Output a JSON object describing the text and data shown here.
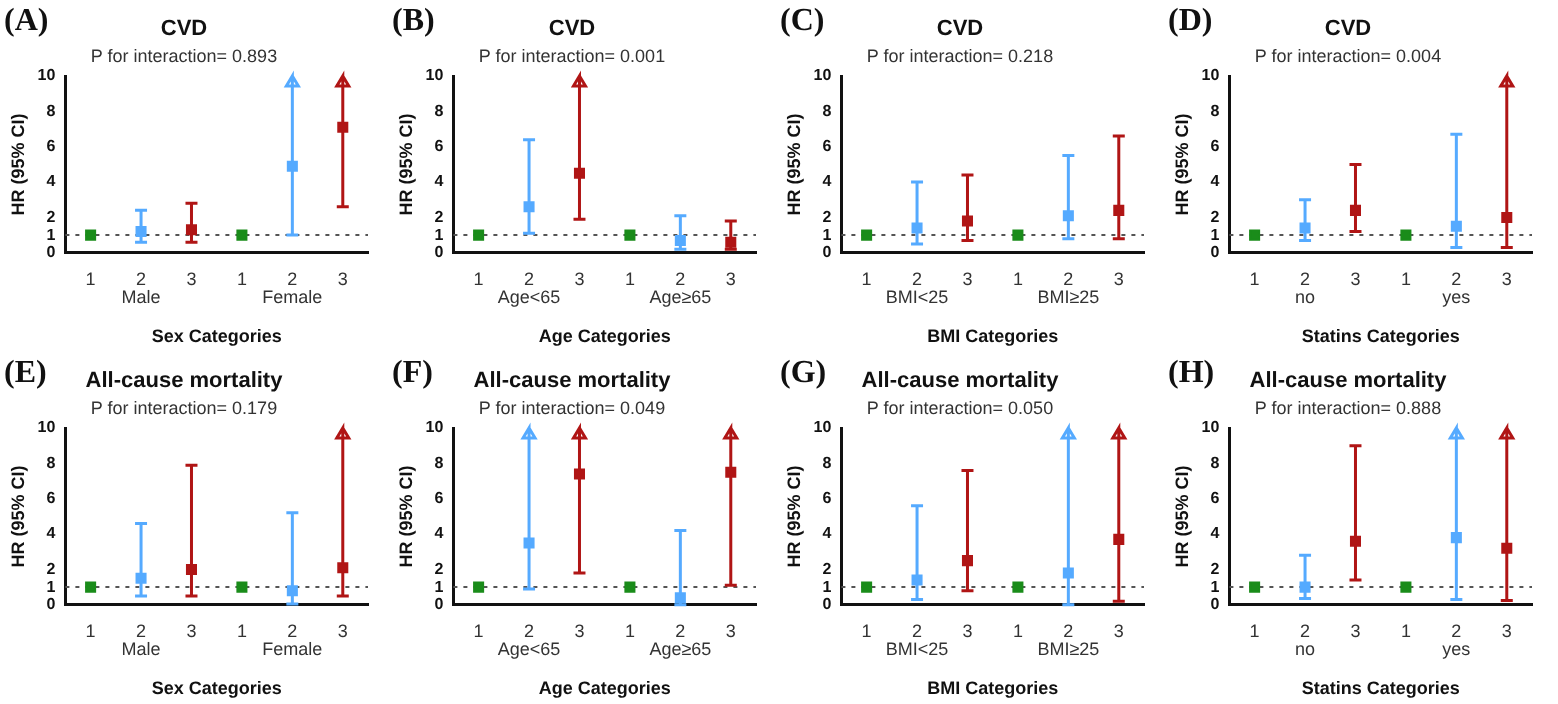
{
  "chart_data": [
    {
      "type": "scatter",
      "title": "CVD",
      "subtitle": "P for interaction= 0.893",
      "xlabel": "Sex Categories",
      "ylabel": "HR (95% CI)",
      "annotations": [
        "(A)",
        "Male",
        "Female"
      ],
      "categories": [
        "1",
        "2",
        "3",
        "1",
        "2",
        "3"
      ],
      "ylim": [
        0,
        10
      ],
      "yticks": [
        0,
        1,
        2,
        4,
        6,
        8,
        10
      ],
      "marker": "square",
      "legend": false,
      "grid": false,
      "ref_lines": [
        {
          "axis": "y",
          "value": 1,
          "color": "#555555",
          "line_style": "dotted"
        }
      ],
      "series": [
        {
          "color": "#1a8c1a",
          "values": [
            1,
            null,
            null,
            1,
            null,
            null
          ]
        },
        {
          "color": "#55aaff",
          "values": [
            null,
            1.2,
            null,
            null,
            4.9,
            null
          ],
          "errors": [
            null,
            [
              0.6,
              2.4
            ],
            null,
            null,
            [
              1.0,
              10
            ],
            null
          ]
        },
        {
          "color": "#b01515",
          "values": [
            null,
            null,
            1.3,
            null,
            null,
            7.1
          ],
          "errors": [
            null,
            null,
            [
              0.6,
              2.8
            ],
            null,
            null,
            [
              2.6,
              10
            ]
          ]
        }
      ]
    },
    {
      "type": "scatter",
      "title": "CVD",
      "subtitle": "P for interaction= 0.001",
      "xlabel": "Age Categories",
      "ylabel": "HR (95% CI)",
      "annotations": [
        "(B)",
        "Age<65",
        "Age≥65"
      ],
      "categories": [
        "1",
        "2",
        "3",
        "1",
        "2",
        "3"
      ],
      "ylim": [
        0,
        10
      ],
      "yticks": [
        0,
        1,
        2,
        4,
        6,
        8,
        10
      ],
      "marker": "square",
      "legend": false,
      "grid": false,
      "ref_lines": [
        {
          "axis": "y",
          "value": 1,
          "color": "#555555",
          "line_style": "dotted"
        }
      ],
      "series": [
        {
          "color": "#1a8c1a",
          "values": [
            1,
            null,
            null,
            1,
            null,
            null
          ]
        },
        {
          "color": "#55aaff",
          "values": [
            null,
            2.6,
            null,
            null,
            0.7,
            null
          ],
          "errors": [
            null,
            [
              1.1,
              6.4
            ],
            null,
            null,
            [
              0.2,
              2.1
            ],
            null
          ]
        },
        {
          "color": "#b01515",
          "values": [
            null,
            null,
            4.5,
            null,
            null,
            0.6
          ],
          "errors": [
            null,
            null,
            [
              1.9,
              10
            ],
            null,
            null,
            [
              0.2,
              1.8
            ]
          ]
        }
      ]
    },
    {
      "type": "scatter",
      "title": "CVD",
      "subtitle": "P for interaction= 0.218",
      "xlabel": "BMI Categories",
      "ylabel": "HR (95% CI)",
      "annotations": [
        "(C)",
        "BMI<25",
        "BMI≥25"
      ],
      "categories": [
        "1",
        "2",
        "3",
        "1",
        "2",
        "3"
      ],
      "ylim": [
        0,
        10
      ],
      "yticks": [
        0,
        1,
        2,
        4,
        6,
        8,
        10
      ],
      "marker": "square",
      "legend": false,
      "grid": false,
      "ref_lines": [
        {
          "axis": "y",
          "value": 1,
          "color": "#555555",
          "line_style": "dotted"
        }
      ],
      "series": [
        {
          "color": "#1a8c1a",
          "values": [
            1,
            null,
            null,
            1,
            null,
            null
          ]
        },
        {
          "color": "#55aaff",
          "values": [
            null,
            1.4,
            null,
            null,
            2.1,
            null
          ],
          "errors": [
            null,
            [
              0.5,
              4.0
            ],
            null,
            null,
            [
              0.8,
              5.5
            ],
            null
          ]
        },
        {
          "color": "#b01515",
          "values": [
            null,
            null,
            1.8,
            null,
            null,
            2.4
          ],
          "errors": [
            null,
            null,
            [
              0.7,
              4.4
            ],
            null,
            null,
            [
              0.8,
              6.6
            ]
          ]
        }
      ]
    },
    {
      "type": "scatter",
      "title": "CVD",
      "subtitle": "P for interaction= 0.004",
      "xlabel": "Statins Categories",
      "ylabel": "HR (95% CI)",
      "annotations": [
        "(D)",
        "no",
        "yes"
      ],
      "categories": [
        "1",
        "2",
        "3",
        "1",
        "2",
        "3"
      ],
      "ylim": [
        0,
        10
      ],
      "yticks": [
        0,
        1,
        2,
        4,
        6,
        8,
        10
      ],
      "marker": "square",
      "legend": false,
      "grid": false,
      "ref_lines": [
        {
          "axis": "y",
          "value": 1,
          "color": "#555555",
          "line_style": "dotted"
        }
      ],
      "series": [
        {
          "color": "#1a8c1a",
          "values": [
            1,
            null,
            null,
            1,
            null,
            null
          ]
        },
        {
          "color": "#55aaff",
          "values": [
            null,
            1.4,
            null,
            null,
            1.5,
            null
          ],
          "errors": [
            null,
            [
              0.7,
              3.0
            ],
            null,
            null,
            [
              0.3,
              6.7
            ],
            null
          ]
        },
        {
          "color": "#b01515",
          "values": [
            null,
            null,
            2.4,
            null,
            null,
            2.0
          ],
          "errors": [
            null,
            null,
            [
              1.2,
              5.0
            ],
            null,
            null,
            [
              0.3,
              10
            ]
          ]
        }
      ]
    },
    {
      "type": "scatter",
      "title": "All-cause mortality",
      "subtitle": "P for interaction= 0.179",
      "xlabel": "Sex Categories",
      "ylabel": "HR (95% CI)",
      "annotations": [
        "(E)",
        "Male",
        "Female"
      ],
      "categories": [
        "1",
        "2",
        "3",
        "1",
        "2",
        "3"
      ],
      "ylim": [
        0,
        10
      ],
      "yticks": [
        0,
        1,
        2,
        4,
        6,
        8,
        10
      ],
      "marker": "square",
      "legend": false,
      "grid": false,
      "ref_lines": [
        {
          "axis": "y",
          "value": 1,
          "color": "#555555",
          "line_style": "dotted"
        }
      ],
      "series": [
        {
          "color": "#1a8c1a",
          "values": [
            1,
            null,
            null,
            1,
            null,
            null
          ]
        },
        {
          "color": "#55aaff",
          "values": [
            null,
            1.5,
            null,
            null,
            0.8,
            null
          ],
          "errors": [
            null,
            [
              0.5,
              4.6
            ],
            null,
            null,
            [
              0.05,
              5.2
            ],
            null
          ]
        },
        {
          "color": "#b01515",
          "values": [
            null,
            null,
            2.0,
            null,
            null,
            2.1
          ],
          "errors": [
            null,
            null,
            [
              0.5,
              7.9
            ],
            null,
            null,
            [
              0.5,
              10
            ]
          ]
        }
      ]
    },
    {
      "type": "scatter",
      "title": "All-cause mortality",
      "subtitle": "P for interaction= 0.049",
      "xlabel": "Age Categories",
      "ylabel": "HR (95% CI)",
      "annotations": [
        "(F)",
        "Age<65",
        "Age≥65"
      ],
      "categories": [
        "1",
        "2",
        "3",
        "1",
        "2",
        "3"
      ],
      "ylim": [
        0,
        10
      ],
      "yticks": [
        0,
        1,
        2,
        4,
        6,
        8,
        10
      ],
      "marker": "square",
      "legend": false,
      "grid": false,
      "ref_lines": [
        {
          "axis": "y",
          "value": 1,
          "color": "#555555",
          "line_style": "dotted"
        }
      ],
      "series": [
        {
          "color": "#1a8c1a",
          "values": [
            1,
            null,
            null,
            1,
            null,
            null
          ]
        },
        {
          "color": "#55aaff",
          "values": [
            null,
            3.5,
            null,
            null,
            0.4,
            null
          ],
          "errors": [
            null,
            [
              0.9,
              10
            ],
            null,
            null,
            [
              0,
              4.2
            ],
            null
          ]
        },
        {
          "color": "#b01515",
          "values": [
            null,
            null,
            7.4,
            null,
            null,
            7.5
          ],
          "errors": [
            null,
            null,
            [
              1.8,
              10
            ],
            null,
            null,
            [
              1.1,
              10
            ]
          ]
        }
      ]
    },
    {
      "type": "scatter",
      "title": "All-cause mortality",
      "subtitle": "P for interaction= 0.050",
      "xlabel": "BMI Categories",
      "ylabel": "HR (95% CI)",
      "annotations": [
        "(G)",
        "BMI<25",
        "BMI≥25"
      ],
      "categories": [
        "1",
        "2",
        "3",
        "1",
        "2",
        "3"
      ],
      "ylim": [
        0,
        10
      ],
      "yticks": [
        0,
        1,
        2,
        4,
        6,
        8,
        10
      ],
      "marker": "square",
      "legend": false,
      "grid": false,
      "ref_lines": [
        {
          "axis": "y",
          "value": 1,
          "color": "#555555",
          "line_style": "dotted"
        }
      ],
      "series": [
        {
          "color": "#1a8c1a",
          "values": [
            1,
            null,
            null,
            1,
            null,
            null
          ]
        },
        {
          "color": "#55aaff",
          "values": [
            null,
            1.4,
            null,
            null,
            1.8,
            null
          ],
          "errors": [
            null,
            [
              0.3,
              5.6
            ],
            null,
            null,
            [
              0,
              10
            ],
            null
          ]
        },
        {
          "color": "#b01515",
          "values": [
            null,
            null,
            2.5,
            null,
            null,
            3.7
          ],
          "errors": [
            null,
            null,
            [
              0.8,
              7.6
            ],
            null,
            null,
            [
              0.2,
              10
            ]
          ]
        }
      ]
    },
    {
      "type": "scatter",
      "title": "All-cause mortality",
      "subtitle": "P for interaction= 0.888",
      "xlabel": "Statins Categories",
      "ylabel": "HR (95% CI)",
      "annotations": [
        "(H)",
        "no",
        "yes"
      ],
      "categories": [
        "1",
        "2",
        "3",
        "1",
        "2",
        "3"
      ],
      "ylim": [
        0,
        10
      ],
      "yticks": [
        0,
        1,
        2,
        4,
        6,
        8,
        10
      ],
      "marker": "square",
      "legend": false,
      "grid": false,
      "ref_lines": [
        {
          "axis": "y",
          "value": 1,
          "color": "#555555",
          "line_style": "dotted"
        }
      ],
      "series": [
        {
          "color": "#1a8c1a",
          "values": [
            1,
            null,
            null,
            1,
            null,
            null
          ]
        },
        {
          "color": "#55aaff",
          "values": [
            null,
            1.0,
            null,
            null,
            3.8,
            null
          ],
          "errors": [
            null,
            [
              0.35,
              2.8
            ],
            null,
            null,
            [
              0.3,
              10
            ],
            null
          ]
        },
        {
          "color": "#b01515",
          "values": [
            null,
            null,
            3.6,
            null,
            null,
            3.2
          ],
          "errors": [
            null,
            null,
            [
              1.4,
              9.0
            ],
            null,
            null,
            [
              0.25,
              10
            ]
          ]
        }
      ]
    }
  ]
}
